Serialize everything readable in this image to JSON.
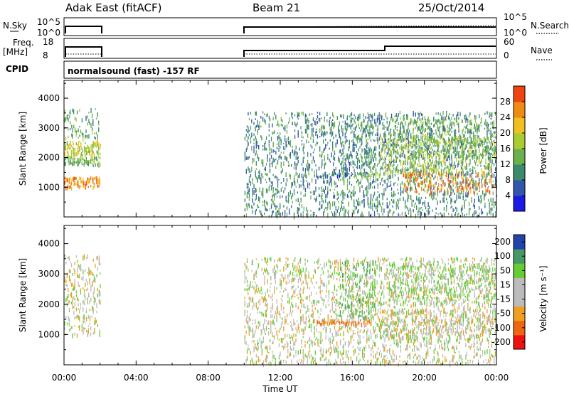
{
  "header": {
    "station": "Adak East (fitACF)",
    "beam": "Beam 21",
    "date": "25/Oct/2014"
  },
  "strips": {
    "nsky_label": "N.Sky",
    "nsky_ticks": [
      "10^5",
      "10^0"
    ],
    "nsearch_label": "N.Search",
    "nsearch_ticks": [
      "10^5",
      "10^0"
    ],
    "freq_label": "Freq.",
    "freq_unit": "[MHz]",
    "freq_ticks": [
      "18",
      "8"
    ],
    "nave_label": "Nave",
    "nave_ticks": [
      "60",
      "0"
    ],
    "cpid_label": "CPID",
    "cpid_text": "normalsound (fast) -157 RF"
  },
  "colors": {
    "power": [
      "#1a1ae6",
      "#3355aa",
      "#3b8a6e",
      "#6ab04c",
      "#aacc33",
      "#f0c020",
      "#f08a10",
      "#ee4411",
      "#dd0000"
    ],
    "velocity": [
      "#ee1111",
      "#ee6611",
      "#f0a020",
      "#bbbbbb",
      "#bbbbbb",
      "#66cc33",
      "#449966",
      "#2244aa"
    ]
  },
  "chart_data": [
    {
      "type": "heatmap",
      "name": "power",
      "ylabel": "Slant Range [km]",
      "yticks": [
        "1000",
        "2000",
        "3000",
        "4000"
      ],
      "ylim": [
        0,
        4600
      ],
      "xlim": [
        0,
        24
      ],
      "colorbar_label": "Power [dB]",
      "colorbar_ticks": [
        "4",
        "8",
        "12",
        "16",
        "20",
        "24",
        "28"
      ],
      "colorbar_range": [
        0,
        32
      ],
      "regions": [
        {
          "t0": 0.0,
          "t1": 2.0,
          "r0": 950,
          "r1": 1300,
          "value": 26
        },
        {
          "t0": 0.0,
          "t1": 2.0,
          "r0": 1700,
          "r1": 2000,
          "value": 14
        },
        {
          "t0": 0.0,
          "t1": 2.0,
          "r0": 2050,
          "r1": 2500,
          "value": 19
        },
        {
          "t0": 0.0,
          "t1": 2.0,
          "r0": 2600,
          "r1": 3600,
          "value": 12
        },
        {
          "t0": 10.0,
          "t1": 24.0,
          "r0": 0,
          "r1": 3500,
          "value": 10
        },
        {
          "t0": 14.0,
          "t1": 16.0,
          "r0": 1300,
          "r1": 1450,
          "value": 8
        },
        {
          "t0": 16.0,
          "t1": 17.5,
          "r0": 1300,
          "r1": 1450,
          "value": 14
        },
        {
          "t0": 15.3,
          "t1": 17.3,
          "r0": 1500,
          "r1": 3400,
          "value": 11
        },
        {
          "t0": 18.8,
          "t1": 24.0,
          "r0": 800,
          "r1": 1500,
          "value": 26
        },
        {
          "t0": 17.5,
          "t1": 24.0,
          "r0": 1400,
          "r1": 2700,
          "value": 17
        },
        {
          "t0": 18.0,
          "t1": 24.0,
          "r0": 2000,
          "r1": 3300,
          "value": 13
        }
      ]
    },
    {
      "type": "heatmap",
      "name": "velocity",
      "ylabel": "Slant Range [km]",
      "yticks": [
        "1000",
        "2000",
        "3000",
        "4000"
      ],
      "ylim": [
        0,
        4600
      ],
      "xlim": [
        0,
        24
      ],
      "colorbar_label": "Velocity [m s⁻¹]",
      "colorbar_ticks": [
        "200",
        "100",
        "50",
        "15",
        "-15",
        "-50",
        "-100",
        "-200"
      ],
      "regions": [
        {
          "t0": 0.0,
          "t1": 2.0,
          "r0": 950,
          "r1": 1600,
          "value": 0
        },
        {
          "t0": 0.0,
          "t1": 2.0,
          "r0": 1700,
          "r1": 3600,
          "value": 0
        },
        {
          "t0": 10.0,
          "t1": 24.0,
          "r0": 0,
          "r1": 3500,
          "value": 0
        },
        {
          "t0": 14.0,
          "t1": 17.0,
          "r0": 1300,
          "r1": 1450,
          "value": -60
        },
        {
          "t0": 15.3,
          "t1": 17.3,
          "r0": 1500,
          "r1": 3400,
          "value": 40
        },
        {
          "t0": 17.5,
          "t1": 24.0,
          "r0": 800,
          "r1": 1800,
          "value": 0
        },
        {
          "t0": 18.0,
          "t1": 24.0,
          "r0": 2000,
          "r1": 3300,
          "value": 20
        }
      ]
    }
  ],
  "xaxis": {
    "label": "Time UT",
    "ticks": [
      "00:00",
      "04:00",
      "08:00",
      "12:00",
      "16:00",
      "20:00",
      "00:00"
    ]
  }
}
